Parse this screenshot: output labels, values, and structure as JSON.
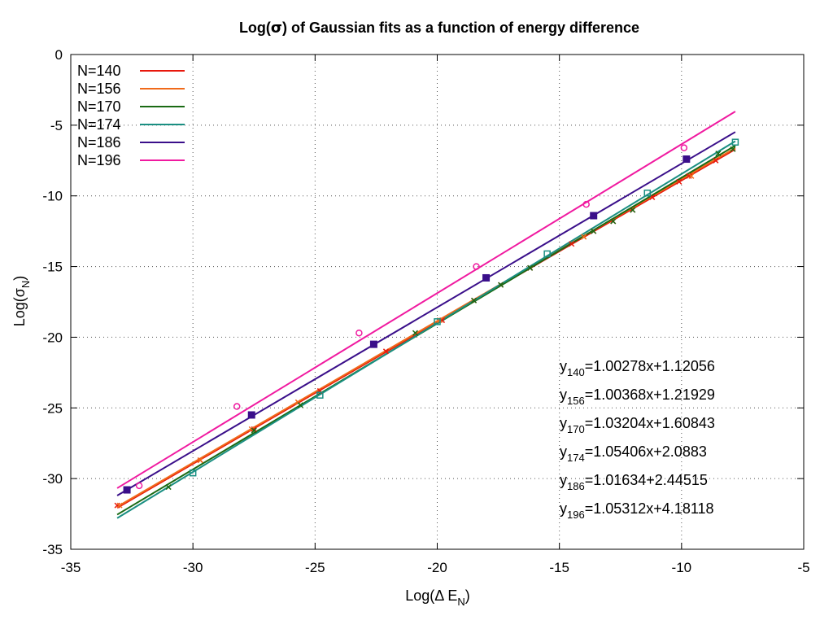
{
  "chart_data": {
    "type": "scatter",
    "title": {
      "prefix": "Log(",
      "symbol": "σ",
      "suffix": ") of Gaussian fits as a function of energy difference"
    },
    "xlabel": {
      "main": "Log(Δ E",
      "sub": "N",
      "close": ")"
    },
    "ylabel": {
      "main": "Log(σ",
      "sub": "N",
      "close": ")"
    },
    "xlim": [
      -35,
      -5
    ],
    "ylim": [
      -35,
      0
    ],
    "xticks": [
      "-35",
      "-30",
      "-25",
      "-20",
      "-15",
      "-10",
      "-5"
    ],
    "yticks": [
      "0",
      "-5",
      "-10",
      "-15",
      "-20",
      "-25",
      "-30",
      "-35"
    ],
    "grid": true,
    "legend_position": "top-left",
    "series": [
      {
        "name": "N=140",
        "color": "#e8180c",
        "marker": "x",
        "points": [
          [
            -33.1,
            -31.9
          ],
          [
            -29.7,
            -28.7
          ],
          [
            -27.5,
            -26.5
          ],
          [
            -24.8,
            -23.8
          ],
          [
            -22.1,
            -21.0
          ],
          [
            -19.8,
            -18.8
          ],
          [
            -18.5,
            -17.4
          ],
          [
            -17.4,
            -16.3
          ],
          [
            -16.2,
            -15.1
          ],
          [
            -14.5,
            -13.4
          ],
          [
            -13.6,
            -12.5
          ],
          [
            -12.8,
            -11.8
          ],
          [
            -12.0,
            -11.0
          ],
          [
            -11.2,
            -10.1
          ],
          [
            -10.1,
            -9.0
          ],
          [
            -9.7,
            -8.6
          ],
          [
            -8.6,
            -7.5
          ]
        ],
        "fit_x": [
          -33.1,
          -7.8
        ],
        "fit_y": [
          -32.07,
          -6.7
        ]
      },
      {
        "name": "N=156",
        "color": "#f06a1a",
        "marker": "x",
        "points": [
          [
            -33.0,
            -31.9
          ],
          [
            -29.7,
            -28.7
          ],
          [
            -27.6,
            -26.5
          ],
          [
            -25.7,
            -24.6
          ],
          [
            -19.9,
            -18.8
          ],
          [
            -14.0,
            -12.9
          ],
          [
            -9.6,
            -8.6
          ]
        ],
        "fit_x": [
          -33.1,
          -7.8
        ],
        "fit_y": [
          -31.99,
          -6.61
        ]
      },
      {
        "name": "N=170",
        "color": "#1a6a14",
        "marker": "x",
        "points": [
          [
            -31.0,
            -30.6
          ],
          [
            -27.5,
            -26.6
          ],
          [
            -25.6,
            -24.8
          ],
          [
            -20.9,
            -19.7
          ],
          [
            -18.5,
            -17.4
          ],
          [
            -17.4,
            -16.3
          ],
          [
            -16.2,
            -15.1
          ],
          [
            -13.6,
            -12.5
          ],
          [
            -12.8,
            -11.8
          ],
          [
            -12.0,
            -11.0
          ],
          [
            -8.5,
            -7.0
          ],
          [
            -7.9,
            -6.7
          ]
        ],
        "fit_x": [
          -33.1,
          -7.8
        ],
        "fit_y": [
          -32.55,
          -6.44
        ]
      },
      {
        "name": "N=174",
        "color": "#1a8f82",
        "marker": "square-open",
        "points": [
          [
            -30.0,
            -29.6
          ],
          [
            -24.8,
            -24.1
          ],
          [
            -20.0,
            -18.9
          ],
          [
            -15.5,
            -14.1
          ],
          [
            -11.4,
            -9.8
          ],
          [
            -7.8,
            -6.2
          ]
        ],
        "fit_x": [
          -33.1,
          -7.8
        ],
        "fit_y": [
          -32.8,
          -6.13
        ]
      },
      {
        "name": "N=186",
        "color": "#3a0f8a",
        "marker": "square-filled",
        "points": [
          [
            -32.7,
            -30.8
          ],
          [
            -27.6,
            -25.5
          ],
          [
            -22.6,
            -20.5
          ],
          [
            -18.0,
            -15.8
          ],
          [
            -13.6,
            -11.4
          ],
          [
            -9.8,
            -7.4
          ]
        ],
        "fit_x": [
          -33.1,
          -7.8
        ],
        "fit_y": [
          -31.2,
          -5.48
        ]
      },
      {
        "name": "N=196",
        "color": "#f01aa0",
        "marker": "circle-open",
        "points": [
          [
            -32.2,
            -30.5
          ],
          [
            -28.2,
            -24.9
          ],
          [
            -23.2,
            -19.7
          ],
          [
            -18.4,
            -15.0
          ],
          [
            -13.9,
            -10.6
          ],
          [
            -9.9,
            -6.6
          ]
        ],
        "fit_x": [
          -33.1,
          -7.8
        ],
        "fit_y": [
          -30.68,
          -4.03
        ]
      }
    ],
    "equations": [
      {
        "label": "y",
        "sub": "140",
        "text": "=1.00278x+1.12056"
      },
      {
        "label": "y",
        "sub": "156",
        "text": "=1.00368x+1.21929"
      },
      {
        "label": "y",
        "sub": "170",
        "text": "=1.03204x+1.60843"
      },
      {
        "label": "y",
        "sub": "174",
        "text": "=1.05406x+2.0883"
      },
      {
        "label": "y",
        "sub": "186",
        "text": "=1.01634+2.44515"
      },
      {
        "label": "y",
        "sub": "196",
        "text": "=1.05312x+4.18118"
      }
    ]
  }
}
